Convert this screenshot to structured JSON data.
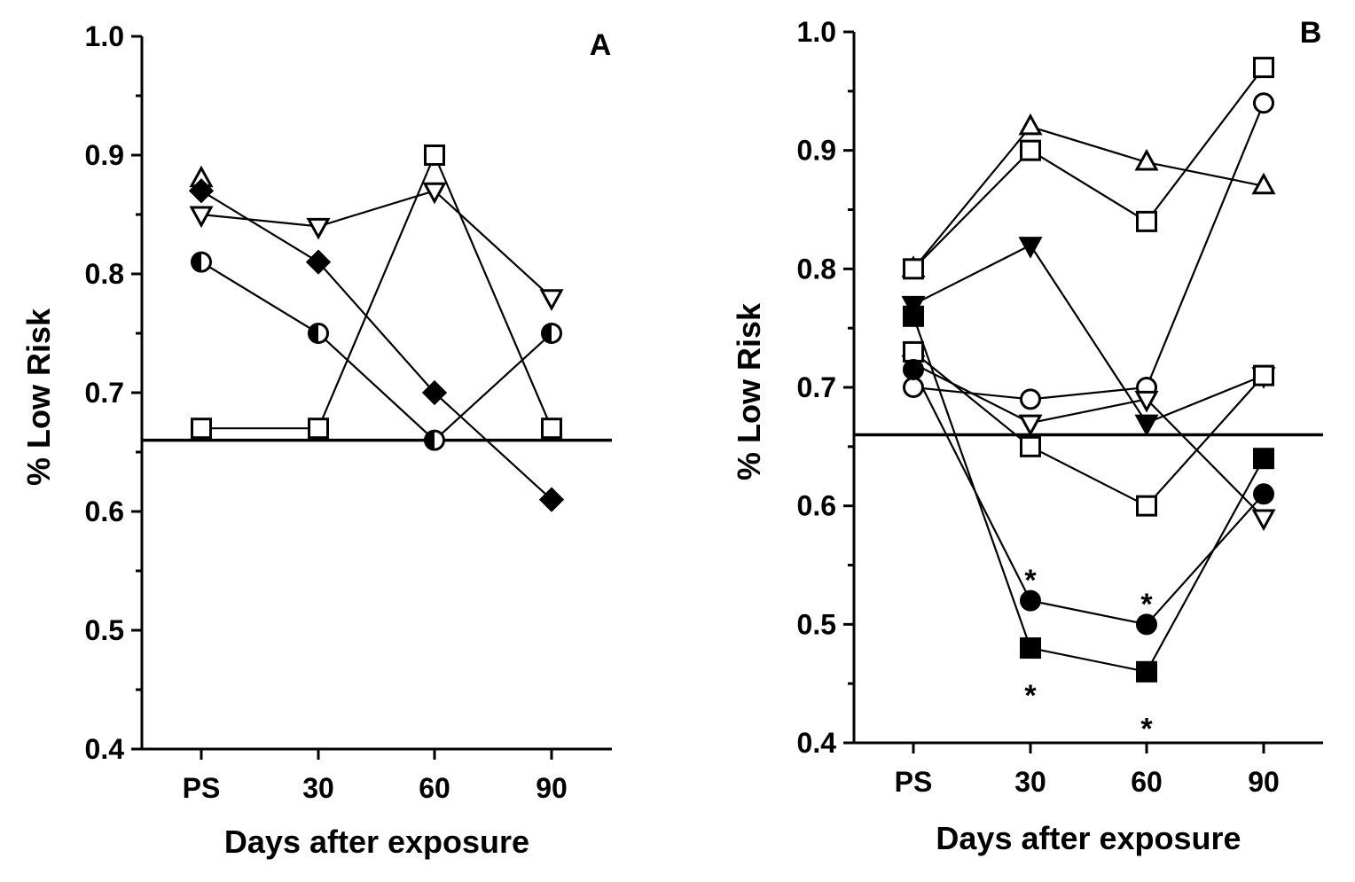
{
  "chart_data": [
    {
      "type": "line",
      "panel_label": "A",
      "ylabel": "% Low  Risk",
      "xlabel": "Days after exposure",
      "categories": [
        "PS",
        "30",
        "60",
        "90"
      ],
      "ylim": [
        0.4,
        1.0
      ],
      "yticks": [
        "1.0",
        "0.9",
        "0.8",
        "0.7",
        "0.6",
        "0.5",
        "0.4"
      ],
      "reference_line": 0.66,
      "series": [
        {
          "name": "open-triangle-up",
          "marker": "triangle-up-open",
          "values": [
            0.88,
            null,
            null,
            null
          ]
        },
        {
          "name": "filled-diamond",
          "marker": "diamond-filled",
          "values": [
            0.87,
            0.81,
            0.7,
            0.61
          ]
        },
        {
          "name": "open-triangle-down",
          "marker": "triangle-down-open",
          "values": [
            0.85,
            0.84,
            0.87,
            0.78
          ]
        },
        {
          "name": "half-filled-circle",
          "marker": "circle-half",
          "values": [
            0.81,
            0.75,
            0.66,
            0.75
          ]
        },
        {
          "name": "open-square",
          "marker": "square-open",
          "values": [
            0.67,
            0.67,
            0.9,
            0.67
          ]
        }
      ],
      "annotations": []
    },
    {
      "type": "line",
      "panel_label": "B",
      "ylabel": "% Low  Risk",
      "xlabel": "Days after exposure",
      "categories": [
        "PS",
        "30",
        "60",
        "90"
      ],
      "ylim": [
        0.4,
        1.0
      ],
      "yticks": [
        "1.0",
        "0.9",
        "0.8",
        "0.7",
        "0.6",
        "0.5",
        "0.4"
      ],
      "reference_line": 0.66,
      "series": [
        {
          "name": "open-triangle-up",
          "marker": "triangle-up-open",
          "values": [
            0.8,
            0.92,
            0.89,
            0.87
          ]
        },
        {
          "name": "open-square-high",
          "marker": "square-open",
          "values": [
            0.8,
            0.9,
            0.84,
            0.97
          ]
        },
        {
          "name": "filled-triangle-down",
          "marker": "triangle-down-filled",
          "values": [
            0.77,
            0.82,
            0.67,
            0.71
          ]
        },
        {
          "name": "open-circle",
          "marker": "circle-open",
          "values": [
            0.7,
            0.69,
            0.7,
            0.94
          ]
        },
        {
          "name": "open-triangle-down",
          "marker": "triangle-down-open",
          "values": [
            0.72,
            0.67,
            0.69,
            0.59
          ]
        },
        {
          "name": "open-square-low",
          "marker": "square-open",
          "values": [
            0.73,
            0.65,
            0.6,
            0.71
          ]
        },
        {
          "name": "filled-circle",
          "marker": "circle-filled",
          "values": [
            0.715,
            0.52,
            0.5,
            0.61
          ]
        },
        {
          "name": "filled-square",
          "marker": "square-filled",
          "values": [
            0.76,
            0.48,
            0.46,
            0.64
          ]
        }
      ],
      "annotations": [
        {
          "text": "*",
          "category": "30",
          "y": 0.545
        },
        {
          "text": "*",
          "category": "60",
          "y": 0.525
        },
        {
          "text": "*",
          "category": "30",
          "y": 0.448
        },
        {
          "text": "*",
          "category": "60",
          "y": 0.42
        }
      ]
    }
  ]
}
